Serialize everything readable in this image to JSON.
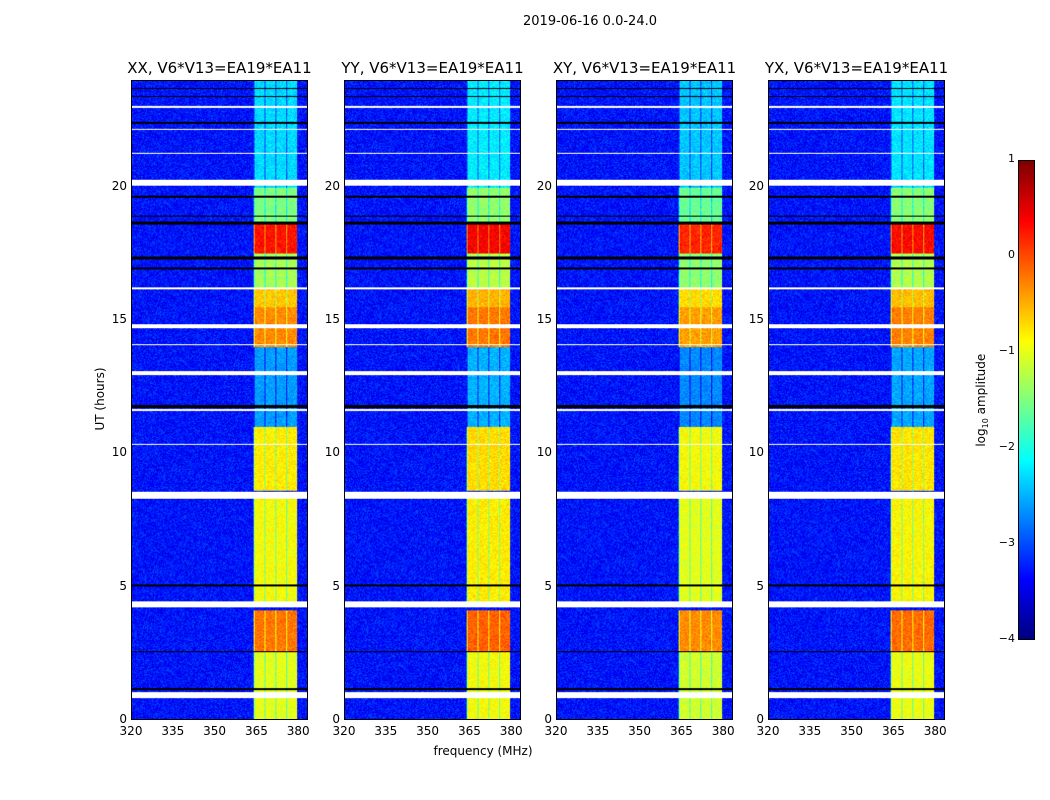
{
  "chart_data": {
    "type": "heatmap",
    "title": "2019-06-16 0.0-24.0",
    "xlabel": "frequency (MHz)",
    "ylabel": "UT (hours)",
    "xlim": [
      320,
      383.5
    ],
    "ylim": [
      0,
      24
    ],
    "xticks": [
      320,
      335,
      350,
      365,
      380
    ],
    "yticks": [
      0,
      5,
      10,
      15,
      20
    ],
    "colormap": "jet",
    "colorbar": {
      "label_prefix": "log",
      "label_sub": "10",
      "label_suffix": " amplitude",
      "range": [
        -4,
        1
      ],
      "ticks": [
        "1",
        "0",
        "−1",
        "−2",
        "−3",
        "−4"
      ],
      "tick_values": [
        1,
        0,
        -1,
        -2,
        -3,
        -4
      ]
    },
    "panels": [
      {
        "title": "XX, V6*V13=EA19*EA11",
        "band_offset": 0
      },
      {
        "title": "YY, V6*V13=EA19*EA11",
        "band_offset": 0.1
      },
      {
        "title": "XY, V6*V13=EA19*EA11",
        "band_offset": -0.1
      },
      {
        "title": "YX, V6*V13=EA19*EA11",
        "band_offset": 0.05
      }
    ],
    "background_level": -3.3,
    "band_mhz": [
      364,
      380
    ],
    "band_segments_hours": [
      {
        "from": 0,
        "to": 2.5,
        "level": -1.0
      },
      {
        "from": 2.5,
        "to": 4.1,
        "level": -0.2
      },
      {
        "from": 4.4,
        "to": 8.3,
        "level": -0.9
      },
      {
        "from": 8.6,
        "to": 11.0,
        "level": -0.8
      },
      {
        "from": 11.0,
        "to": 14.0,
        "level": -2.6
      },
      {
        "from": 14.0,
        "to": 15.5,
        "level": -0.3
      },
      {
        "from": 15.5,
        "to": 16.2,
        "level": -0.6
      },
      {
        "from": 16.2,
        "to": 17.5,
        "level": -1.3
      },
      {
        "from": 17.5,
        "to": 18.6,
        "level": 0.3
      },
      {
        "from": 18.6,
        "to": 20.0,
        "level": -1.5
      },
      {
        "from": 20.0,
        "to": 24.0,
        "level": -2.3
      }
    ],
    "flagged_white_hours": [
      [
        0.8,
        1.0
      ],
      [
        4.2,
        4.42
      ],
      [
        8.3,
        8.55
      ],
      [
        10.3,
        10.35
      ],
      [
        11.6,
        11.65
      ],
      [
        12.95,
        13.1
      ],
      [
        14.05,
        14.1
      ],
      [
        14.7,
        14.85
      ],
      [
        16.15,
        16.25
      ],
      [
        20.05,
        20.3
      ],
      [
        21.25,
        21.3
      ],
      [
        22.15,
        22.2
      ],
      [
        23.0,
        23.05
      ]
    ],
    "flagged_black_hours": [
      [
        1.1,
        1.15
      ],
      [
        2.5,
        2.55
      ],
      [
        5.0,
        5.05
      ],
      [
        11.7,
        11.8
      ],
      [
        16.9,
        17.0
      ],
      [
        17.3,
        17.4
      ],
      [
        18.6,
        18.7
      ],
      [
        18.9,
        18.95
      ],
      [
        19.6,
        19.7
      ],
      [
        22.4,
        22.45
      ],
      [
        23.4,
        23.45
      ],
      [
        23.7,
        23.75
      ]
    ]
  }
}
